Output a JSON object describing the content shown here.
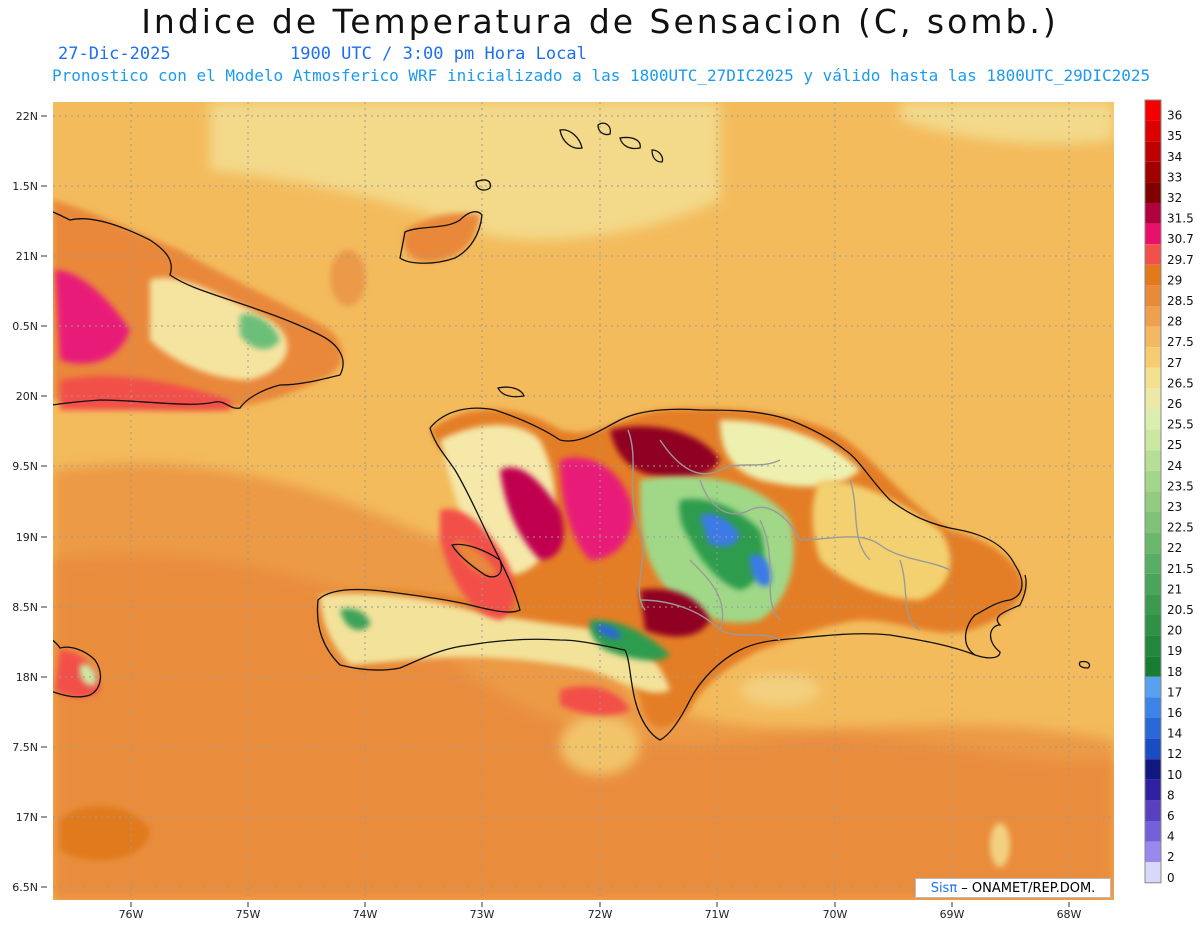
{
  "header": {
    "title": "Indice de Temperatura de Sensacion (C, somb.)",
    "date": "27-Dic-2025",
    "time": "1900 UTC / 3:00 pm Hora Local",
    "description": "Pronostico con el Modelo Atmosferico WRF inicializado a las 1800UTC_27DIC2025 y válido hasta las  1800UTC_29DIC2025"
  },
  "credit": {
    "logo": "Sisπ",
    "text": " – ONAMET/REP.DOM."
  },
  "axes": {
    "lat_labels": [
      "22N",
      "1.5N",
      "21N",
      "0.5N",
      "20N",
      "9.5N",
      "19N",
      "8.5N",
      "18N",
      "7.5N",
      "17N",
      "6.5N"
    ],
    "lon_labels": [
      "76W",
      "75W",
      "74W",
      "73W",
      "72W",
      "71W",
      "70W",
      "69W",
      "68W"
    ]
  },
  "legend": {
    "labels": [
      "36",
      "35",
      "34",
      "33",
      "32",
      "31.5",
      "30.7",
      "29.7",
      "29",
      "28.5",
      "28",
      "27.5",
      "27",
      "26.5",
      "26",
      "25.5",
      "25",
      "24",
      "23.5",
      "23",
      "22.5",
      "22",
      "21.5",
      "21",
      "20.5",
      "20",
      "19",
      "18",
      "17",
      "16",
      "14",
      "12",
      "10",
      "8",
      "6",
      "4",
      "2",
      "0"
    ],
    "colors": [
      "#f50000",
      "#dc0000",
      "#c00000",
      "#a00000",
      "#800000",
      "#b00040",
      "#e8106a",
      "#f2504a",
      "#e07a1a",
      "#e88a3a",
      "#eea050",
      "#f3b860",
      "#f7cc70",
      "#f3e090",
      "#ece8a8",
      "#dcedb0",
      "#cce8a0",
      "#b6de94",
      "#a4d68a",
      "#92cc80",
      "#80c278",
      "#6ab86c",
      "#58ae62",
      "#4aa45a",
      "#3c9a50",
      "#309046",
      "#22863c",
      "#187c32",
      "#5aa0f0",
      "#3c84e8",
      "#2a68d8",
      "#1a4cc4",
      "#101880",
      "#3020a0",
      "#5a40c0",
      "#7460d8",
      "#9a88ec",
      "#d8d8f8"
    ]
  }
}
